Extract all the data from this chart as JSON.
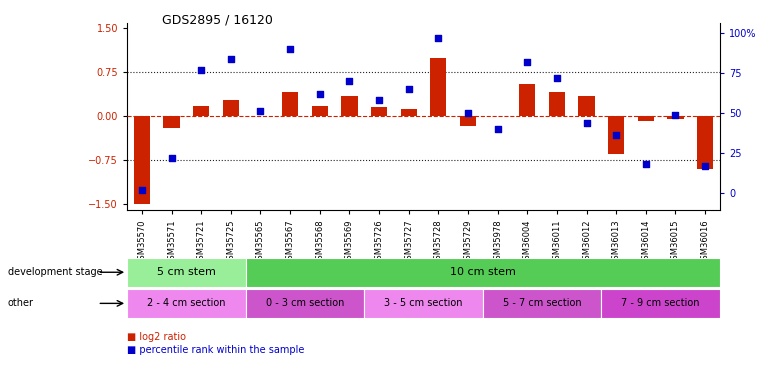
{
  "title": "GDS2895 / 16120",
  "samples": [
    "GSM35570",
    "GSM35571",
    "GSM35721",
    "GSM35725",
    "GSM35565",
    "GSM35567",
    "GSM35568",
    "GSM35569",
    "GSM35726",
    "GSM35727",
    "GSM35728",
    "GSM35729",
    "GSM35978",
    "GSM36004",
    "GSM36011",
    "GSM36012",
    "GSM36013",
    "GSM36014",
    "GSM36015",
    "GSM36016"
  ],
  "log2_ratio": [
    -1.5,
    -0.2,
    0.18,
    0.28,
    0.0,
    0.42,
    0.18,
    0.35,
    0.15,
    0.12,
    1.0,
    -0.17,
    0.0,
    0.55,
    0.42,
    0.35,
    -0.65,
    -0.08,
    -0.05,
    -0.9
  ],
  "percentile": [
    2,
    22,
    77,
    84,
    51,
    90,
    62,
    70,
    58,
    65,
    97,
    50,
    40,
    82,
    72,
    44,
    36,
    18,
    49,
    17
  ],
  "ylim": [
    -1.6,
    1.6
  ],
  "y2lim": [
    -10.67,
    106.67
  ],
  "yticks": [
    -1.5,
    -0.75,
    0,
    0.75,
    1.5
  ],
  "y2ticks": [
    0,
    25,
    50,
    75,
    100
  ],
  "bar_color": "#cc2200",
  "scatter_color": "#0000cc",
  "dotted_color": "#222222",
  "dev_stage_groups": [
    {
      "label": "5 cm stem",
      "start": 0,
      "end": 4,
      "color": "#99ee99"
    },
    {
      "label": "10 cm stem",
      "start": 4,
      "end": 20,
      "color": "#55cc55"
    }
  ],
  "other_groups": [
    {
      "label": "2 - 4 cm section",
      "start": 0,
      "end": 4,
      "color": "#ee88ee"
    },
    {
      "label": "0 - 3 cm section",
      "start": 4,
      "end": 8,
      "color": "#cc55cc"
    },
    {
      "label": "3 - 5 cm section",
      "start": 8,
      "end": 12,
      "color": "#ee88ee"
    },
    {
      "label": "5 - 7 cm section",
      "start": 12,
      "end": 16,
      "color": "#cc55cc"
    },
    {
      "label": "7 - 9 cm section",
      "start": 16,
      "end": 20,
      "color": "#cc44cc"
    }
  ],
  "bar_width": 0.55,
  "scatter_size": 22,
  "legend_bar_label": "log2 ratio",
  "legend_scatter_label": "percentile rank within the sample",
  "dev_stage_label": "development stage",
  "other_label": "other"
}
